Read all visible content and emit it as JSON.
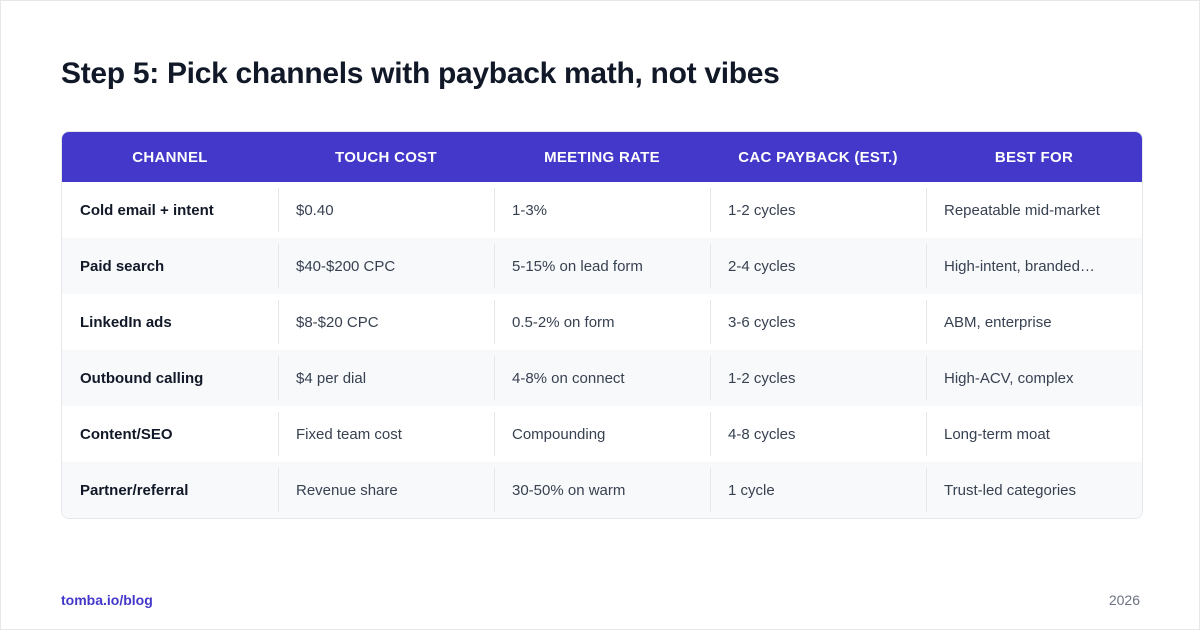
{
  "header": {
    "title": "Step 5: Pick channels with payback math, not vibes"
  },
  "table": {
    "columns": [
      "CHANNEL",
      "TOUCH COST",
      "MEETING RATE",
      "CAC PAYBACK (EST.)",
      "BEST FOR"
    ],
    "rows": [
      [
        "Cold email + intent",
        "$0.40",
        "1-3%",
        "1-2 cycles",
        "Repeatable mid-market"
      ],
      [
        "Paid search",
        "$40-$200 CPC",
        "5-15% on lead form",
        "2-4 cycles",
        "High-intent, branded…"
      ],
      [
        "LinkedIn ads",
        "$8-$20 CPC",
        "0.5-2% on form",
        "3-6 cycles",
        "ABM, enterprise"
      ],
      [
        "Outbound calling",
        "$4 per dial",
        "4-8% on connect",
        "1-2 cycles",
        "High-ACV, complex"
      ],
      [
        "Content/SEO",
        "Fixed team cost",
        "Compounding",
        "4-8 cycles",
        "Long-term moat"
      ],
      [
        "Partner/referral",
        "Revenue share",
        "30-50% on warm",
        "1 cycle",
        "Trust-led categories"
      ]
    ]
  },
  "footer": {
    "source": "tomba.io/blog",
    "year": "2026"
  }
}
